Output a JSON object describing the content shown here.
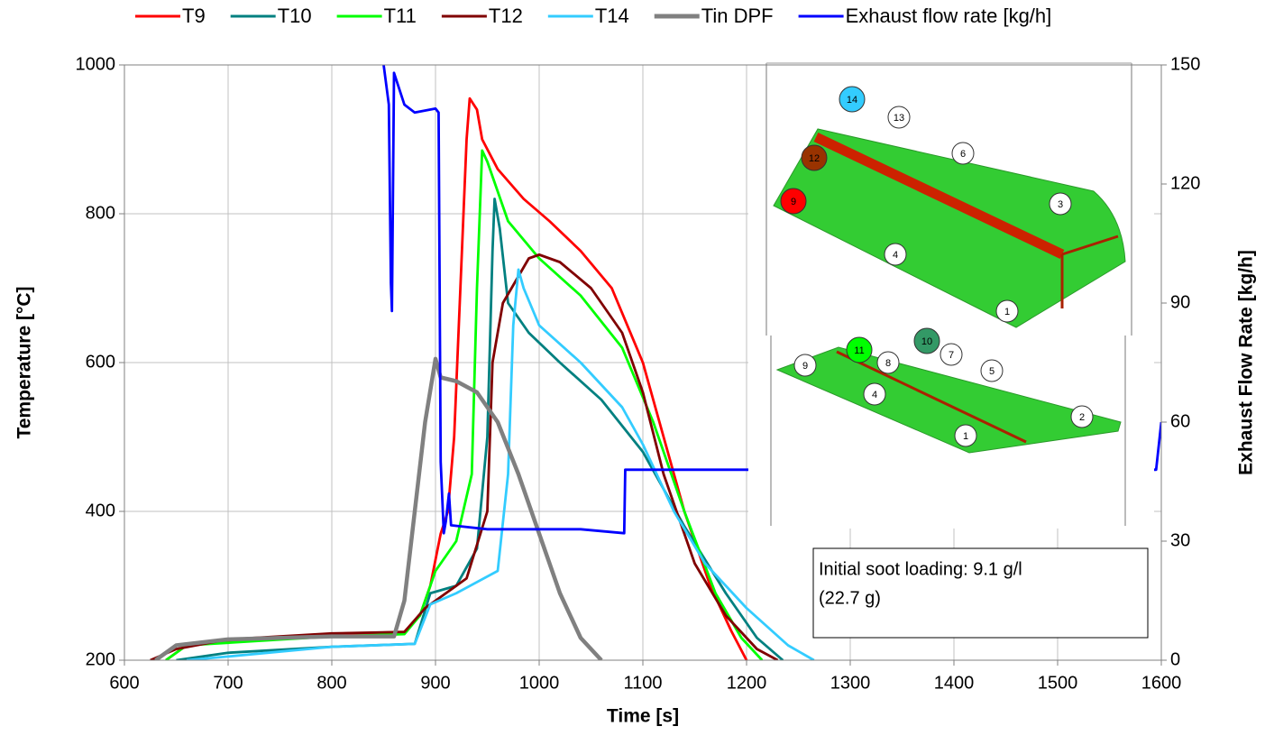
{
  "chart_data": {
    "type": "line",
    "x_label": "Time [s]",
    "y_label": "Temperature [°C]",
    "y2_label": "Exhaust Flow Rate [kg/h]",
    "xlim": [
      600,
      1600
    ],
    "xticks": [
      600,
      700,
      800,
      900,
      1000,
      1100,
      1200,
      1300,
      1400,
      1500,
      1600
    ],
    "ylim": [
      200,
      1000
    ],
    "yticks": [
      200,
      400,
      600,
      800,
      1000
    ],
    "y2lim": [
      0,
      150
    ],
    "y2ticks": [
      0,
      30,
      60,
      90,
      120,
      150
    ],
    "grid": true,
    "legend": "top",
    "annotation": [
      "Initial soot loading: 9.1 g/l",
      "(22.7 g)"
    ],
    "inset_markers": [
      {
        "label": "14",
        "color": "#33ccff"
      },
      {
        "label": "13",
        "color": "#ffffff"
      },
      {
        "label": "6",
        "color": "#ffffff"
      },
      {
        "label": "12",
        "color": "#993300"
      },
      {
        "label": "9",
        "color": "#ff0000"
      },
      {
        "label": "3",
        "color": "#ffffff"
      },
      {
        "label": "4",
        "color": "#ffffff"
      },
      {
        "label": "1",
        "color": "#ffffff"
      },
      {
        "label": "10",
        "color": "#339966"
      },
      {
        "label": "11",
        "color": "#00ff00"
      },
      {
        "label": "7",
        "color": "#ffffff"
      },
      {
        "label": "8",
        "color": "#ffffff"
      },
      {
        "label": "9",
        "color": "#ffffff"
      },
      {
        "label": "5",
        "color": "#ffffff"
      },
      {
        "label": "4",
        "color": "#ffffff"
      },
      {
        "label": "2",
        "color": "#ffffff"
      },
      {
        "label": "1",
        "color": "#ffffff"
      }
    ],
    "series": [
      {
        "name": "T9",
        "color": "#ff0000",
        "x": [
          640,
          660,
          750,
          800,
          870,
          885,
          895,
          905,
          912,
          918,
          924,
          930,
          933,
          940,
          945,
          960,
          985,
          1010,
          1040,
          1070,
          1100,
          1120,
          1140,
          1165,
          1185,
          1200
        ],
        "values": [
          200,
          220,
          230,
          235,
          238,
          260,
          300,
          370,
          400,
          500,
          700,
          900,
          955,
          940,
          900,
          860,
          820,
          790,
          750,
          700,
          600,
          500,
          400,
          300,
          240,
          200
        ]
      },
      {
        "name": "T10",
        "color": "#008080",
        "x": [
          650,
          700,
          800,
          880,
          895,
          920,
          940,
          950,
          955,
          957,
          962,
          970,
          990,
          1020,
          1060,
          1100,
          1140,
          1180,
          1210,
          1235
        ],
        "values": [
          200,
          210,
          218,
          222,
          290,
          300,
          350,
          500,
          750,
          820,
          780,
          680,
          640,
          600,
          550,
          480,
          380,
          290,
          230,
          200
        ]
      },
      {
        "name": "T11",
        "color": "#00ff00",
        "x": [
          640,
          660,
          800,
          870,
          885,
          900,
          920,
          935,
          940,
          945,
          950,
          970,
          1000,
          1040,
          1080,
          1110,
          1140,
          1170,
          1195,
          1215
        ],
        "values": [
          200,
          220,
          232,
          235,
          260,
          320,
          360,
          450,
          700,
          885,
          870,
          790,
          740,
          690,
          620,
          520,
          400,
          290,
          230,
          200
        ]
      },
      {
        "name": "T12",
        "color": "#800000",
        "x": [
          625,
          650,
          700,
          800,
          870,
          890,
          910,
          930,
          950,
          955,
          965,
          990,
          1000,
          1020,
          1050,
          1080,
          1100,
          1120,
          1150,
          1180,
          1210,
          1230
        ],
        "values": [
          200,
          215,
          228,
          236,
          238,
          270,
          290,
          310,
          400,
          600,
          680,
          740,
          745,
          735,
          700,
          640,
          560,
          450,
          330,
          260,
          215,
          200
        ]
      },
      {
        "name": "T14",
        "color": "#33ccff",
        "x": [
          660,
          700,
          800,
          880,
          895,
          920,
          960,
          970,
          975,
          980,
          985,
          1000,
          1040,
          1080,
          1100,
          1130,
          1160,
          1200,
          1240,
          1265
        ],
        "values": [
          200,
          205,
          218,
          222,
          275,
          290,
          320,
          450,
          650,
          725,
          700,
          650,
          600,
          540,
          490,
          400,
          330,
          270,
          220,
          200
        ]
      },
      {
        "name": "Tin DPF",
        "color": "#808080",
        "x": [
          630,
          650,
          700,
          800,
          860,
          870,
          880,
          890,
          900,
          905,
          920,
          940,
          960,
          980,
          1000,
          1020,
          1040,
          1060
        ],
        "values": [
          200,
          220,
          228,
          232,
          232,
          280,
          400,
          520,
          605,
          580,
          575,
          560,
          520,
          450,
          370,
          290,
          230,
          200
        ]
      },
      {
        "name": "Exhaust flow rate [kg/h]",
        "color": "#0000ff",
        "axis": "y2",
        "x": [
          850,
          855,
          857,
          858,
          860,
          870,
          880,
          900,
          903,
          905,
          908,
          910,
          913,
          915,
          950,
          1000,
          1040,
          1082,
          1083,
          1100,
          1150,
          1200,
          1595,
          1600
        ],
        "values": [
          150,
          140,
          95,
          88,
          148,
          140,
          138,
          139,
          138,
          50,
          32,
          35,
          42,
          34,
          33,
          33,
          33,
          32,
          48,
          48,
          48,
          48,
          48,
          60
        ]
      }
    ]
  }
}
